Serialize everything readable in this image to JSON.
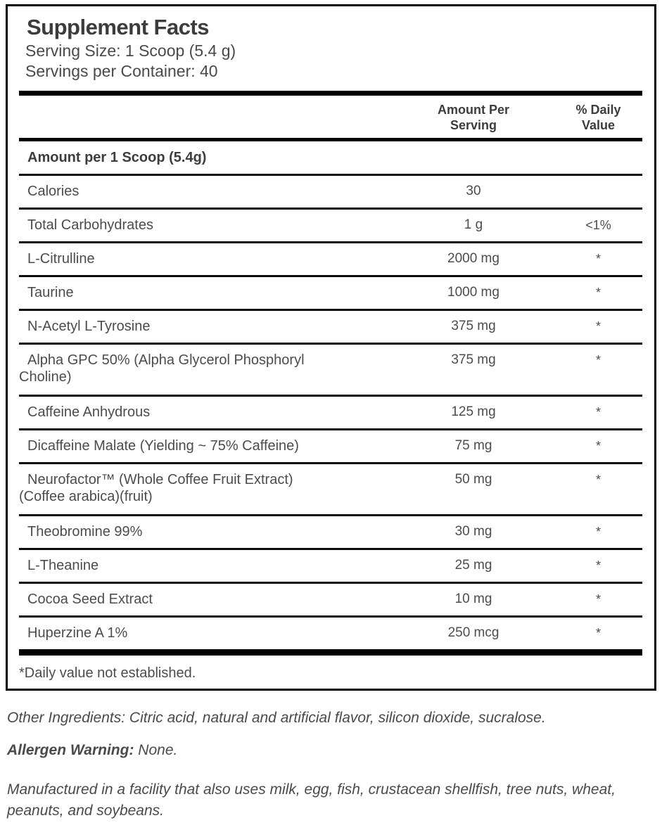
{
  "header": {
    "title": "Supplement Facts",
    "serving_size": "Serving Size: 1 Scoop (5.4 g)",
    "servings_per_container": "Servings per Container: 40"
  },
  "table": {
    "col_amount_header": "Amount Per\nServing",
    "col_dv_header": "% Daily\nValue",
    "section_header": "Amount per 1 Scoop (5.4g)",
    "rows": [
      {
        "name": "Calories",
        "amount": "30",
        "dv": ""
      },
      {
        "name": "Total Carbohydrates",
        "amount": "1 g",
        "dv": "<1%"
      },
      {
        "name": "L-Citrulline",
        "amount": "2000 mg",
        "dv": "*"
      },
      {
        "name": "Taurine",
        "amount": "1000 mg",
        "dv": "*"
      },
      {
        "name": "N-Acetyl L-Tyrosine",
        "amount": "375 mg",
        "dv": "*"
      },
      {
        "name": "Alpha GPC 50% (Alpha Glycerol Phosphoryl\nCholine)",
        "amount": "375 mg",
        "dv": "*"
      },
      {
        "name": "Caffeine Anhydrous",
        "amount": "125 mg",
        "dv": "*"
      },
      {
        "name": "Dicaffeine Malate (Yielding ~ 75% Caffeine)",
        "amount": "75 mg",
        "dv": "*"
      },
      {
        "name": "Neurofactor™ (Whole Coffee Fruit Extract)\n(Coffee arabica)(fruit)",
        "amount": "50 mg",
        "dv": "*"
      },
      {
        "name": "Theobromine 99%",
        "amount": "30 mg",
        "dv": "*"
      },
      {
        "name": "L-Theanine",
        "amount": "25 mg",
        "dv": "*"
      },
      {
        "name": "Cocoa Seed Extract",
        "amount": "10 mg",
        "dv": "*"
      },
      {
        "name": "Huperzine A 1%",
        "amount": "250 mcg",
        "dv": "*"
      }
    ],
    "footnote": "*Daily value not established."
  },
  "footer": {
    "other_ingredients": "Other Ingredients: Citric acid, natural and artificial flavor, silicon dioxide, sucralose.",
    "allergen_label": "Allergen Warning:",
    "allergen_value": " None.",
    "manufactured": "Manufactured in a facility that also uses milk, egg, fish, crustacean shellfish, tree nuts, wheat, peanuts, and soybeans."
  },
  "colors": {
    "rule_black": "#000000",
    "text_gray": "#4c4c4c",
    "title_gray": "#3c3c3c",
    "background": "#ffffff"
  }
}
